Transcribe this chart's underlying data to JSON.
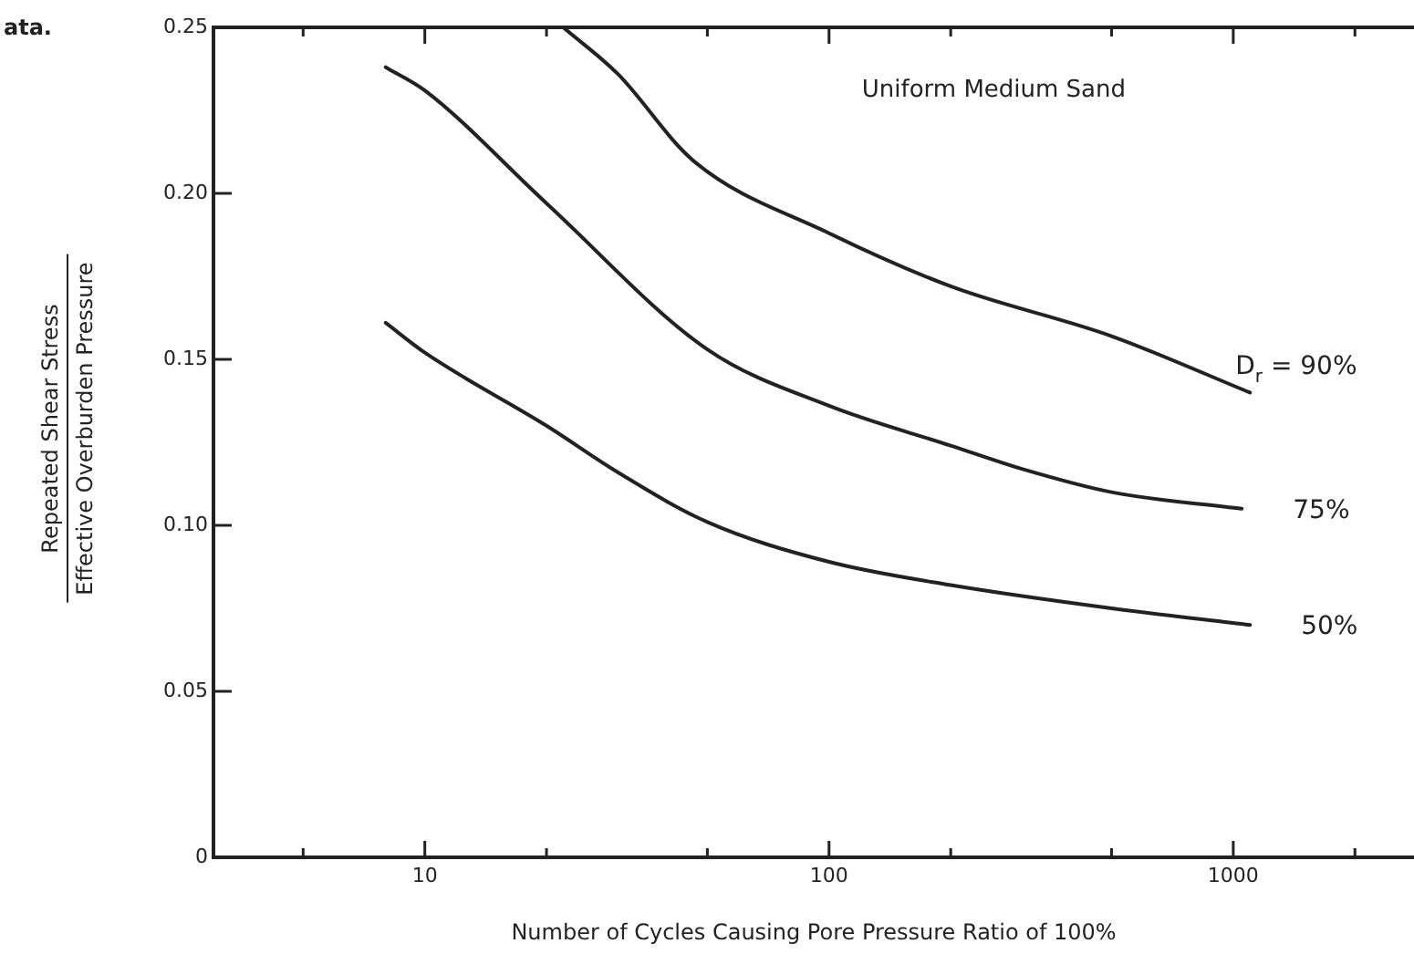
{
  "chart_data": {
    "type": "line",
    "xlabel": "Number of Cycles Causing Pore Pressure Ratio of 100%",
    "ylabel": "Repeated Shear Stress\nEffective Overburden Pressure",
    "annotations": [
      "Uniform Medium Sand",
      "ata."
    ],
    "log": "x",
    "xlim": [
      3,
      2800
    ],
    "ylim": [
      0,
      0.25
    ],
    "xticks": [
      {
        "value": 5,
        "label": null
      },
      10,
      {
        "value": 20,
        "label": null
      },
      {
        "value": 50,
        "label": null
      },
      100,
      {
        "value": 200,
        "label": null
      },
      {
        "value": 500,
        "label": null
      },
      1000,
      {
        "value": 2000,
        "label": null
      }
    ],
    "yticks": [
      0,
      0.05,
      {
        "value": 0.1,
        "label": "0.10"
      },
      0.15,
      {
        "value": 0.2,
        "label": "0.20"
      },
      0.25
    ],
    "marker": "none",
    "line_style": "solid",
    "series": [
      {
        "name": "D$_{r}$ = 90%",
        "color": "#222222",
        "x": [
          22,
          30,
          46,
          100,
          200,
          500,
          1100
        ],
        "values": [
          0.25,
          0.236,
          0.21,
          0.188,
          0.172,
          0.157,
          0.14
        ]
      },
      {
        "name": "75%",
        "color": "#222222",
        "x": [
          8,
          10,
          20,
          50,
          100,
          200,
          300,
          500,
          1050
        ],
        "values": [
          0.238,
          0.231,
          0.197,
          0.153,
          0.136,
          0.124,
          0.117,
          0.11,
          0.105
        ]
      },
      {
        "name": "50%",
        "color": "#222222",
        "x": [
          8,
          10,
          20,
          30,
          50,
          100,
          200,
          500,
          1100
        ],
        "values": [
          0.161,
          0.152,
          0.13,
          0.116,
          0.101,
          0.089,
          0.082,
          0.075,
          0.07
        ]
      }
    ]
  }
}
